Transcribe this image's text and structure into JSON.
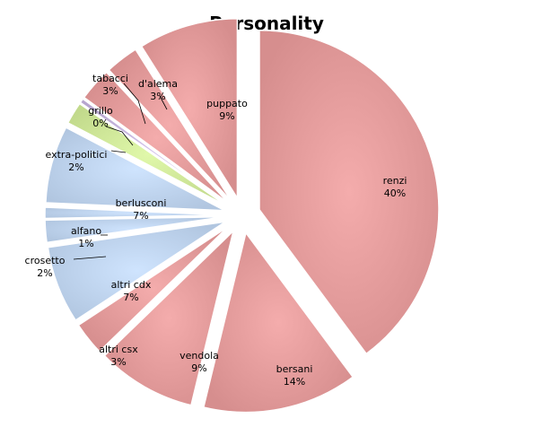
{
  "chart_data": {
    "type": "pie",
    "title": "Personality",
    "slices": [
      {
        "name": "renzi",
        "value": 40,
        "label": "40%",
        "color": "#e8a0a0",
        "group": "csx"
      },
      {
        "name": "bersani",
        "value": 14,
        "label": "14%",
        "color": "#e8a0a0",
        "group": "csx"
      },
      {
        "name": "vendola",
        "value": 9,
        "label": "9%",
        "color": "#e8a0a0",
        "group": "csx"
      },
      {
        "name": "altri csx",
        "value": 3,
        "label": "3%",
        "color": "#e8a0a0",
        "group": "csx"
      },
      {
        "name": "altri cdx",
        "value": 7,
        "label": "7%",
        "color": "#c3d8f2",
        "group": "cdx"
      },
      {
        "name": "crosetto",
        "value": 2,
        "label": "2%",
        "color": "#c3d8f2",
        "group": "cdx"
      },
      {
        "name": "alfano",
        "value": 1,
        "label": "1%",
        "color": "#c3d8f2",
        "group": "cdx"
      },
      {
        "name": "berlusconi",
        "value": 7,
        "label": "7%",
        "color": "#c3d8f2",
        "group": "cdx"
      },
      {
        "name": "extra-politici",
        "value": 2,
        "label": "2%",
        "color": "#d4ec9e",
        "group": "other"
      },
      {
        "name": "grillo",
        "value": 0.4,
        "label": "0%",
        "color": "#c9b8e0",
        "group": "other"
      },
      {
        "name": "tabacci",
        "value": 3,
        "label": "3%",
        "color": "#e8a0a0",
        "group": "csx"
      },
      {
        "name": "d'alema",
        "value": 3,
        "label": "3%",
        "color": "#e8a0a0",
        "group": "csx"
      },
      {
        "name": "puppato",
        "value": 9,
        "label": "9%",
        "color": "#e8a0a0",
        "group": "csx"
      }
    ],
    "legend": "none",
    "label_format": "name-and-percent"
  }
}
